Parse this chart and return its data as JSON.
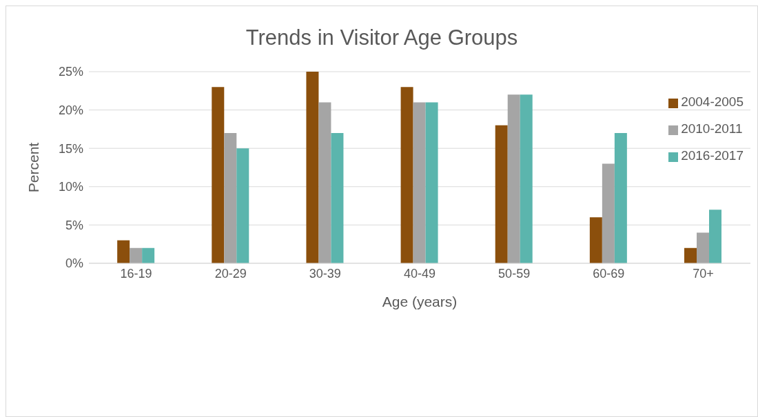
{
  "chart_data": {
    "type": "bar",
    "title": "Trends in Visitor Age Groups",
    "xlabel": "Age (years)",
    "ylabel": "Percent",
    "categories": [
      "16-19",
      "20-29",
      "30-39",
      "40-49",
      "50-59",
      "60-69",
      "70+"
    ],
    "series": [
      {
        "name": "2004-2005",
        "color": "#8b4f0c",
        "values": [
          3,
          23,
          25,
          23,
          18,
          6,
          2
        ]
      },
      {
        "name": "2010-2011",
        "color": "#a5a5a5",
        "values": [
          2,
          17,
          21,
          21,
          22,
          13,
          4
        ]
      },
      {
        "name": "2016-2017",
        "color": "#5bb5ad",
        "values": [
          2,
          15,
          17,
          21,
          22,
          17,
          7
        ]
      }
    ],
    "ylim": [
      0,
      25
    ],
    "yticks": [
      {
        "value": 0,
        "label": "0%"
      },
      {
        "value": 5,
        "label": "5%"
      },
      {
        "value": 10,
        "label": "10%"
      },
      {
        "value": 15,
        "label": "15%"
      },
      {
        "value": 20,
        "label": "20%"
      },
      {
        "value": 25,
        "label": "25%"
      }
    ],
    "grid": "y",
    "legend": "top right"
  }
}
